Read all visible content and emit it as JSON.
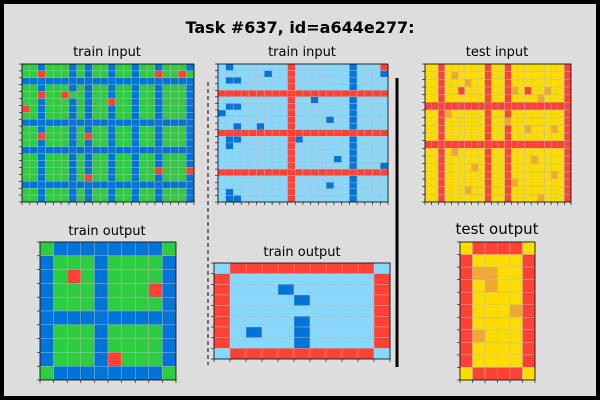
{
  "title": "Task #637, id=a644e277:",
  "palette": {
    "0": "#ffffff",
    "1": "#0074D9",
    "2": "#FF4136",
    "3": "#2ECC40",
    "4": "#FFDC00",
    "5": "#87D8FF",
    "black": "#000000",
    "background": "#dddddd"
  },
  "panels": [
    {
      "id": "train-input-1",
      "label": "train input",
      "grid": [
        "3313331313313313313331",
        "3323331313313313323323",
        "1111111111111111111111",
        "3313331313313313313331",
        "3323323313313313313331",
        "3313331313323313313331",
        "2313331313313313313331",
        "3313331313313313313331",
        "1111111111111111111111",
        "3313331313313313313331",
        "3323331323313313313331",
        "3313331313313313313331",
        "1111111111111111111111",
        "3313331313313313313331",
        "3313331313313313313331",
        "3313331313313313323332",
        "3313331323313313313331",
        "1111111111111111111111",
        "3313331313313313313331",
        "3313331313313313313331"
      ]
    },
    {
      "id": "train-output-1",
      "label": "train output",
      "grid": [
        "3111111113",
        "1333133331",
        "1323133331",
        "1333133321",
        "1333133331",
        "1111111111",
        "1333133331",
        "1333133331",
        "1333123331",
        "3111111113"
      ]
    },
    {
      "id": "train-input-2",
      "label": "train input",
      "grid": [
        "5155555552555555515552",
        "5555551552555555515551",
        "5115555552555555515555",
        "5555555552555555515555",
        "2222222222222222222222",
        "5555555552551555515555",
        "5115555552555555515555",
        "1555555552555555515555",
        "5555555552555515515555",
        "5515515552555555515555",
        "2222222222222222222222",
        "5115555552155555515555",
        "5155555552555555515555",
        "5555555552555555515555",
        "5555555552555551515555",
        "5555555552555555515551",
        "2222222222222222222222",
        "5555555552555555515555",
        "5555555552555515515555",
        "5155555552555555515555",
        "5115555552555555515555"
      ]
    },
    {
      "id": "train-output-2",
      "label": "train output",
      "grid": [
        "52222222225",
        "25555555552",
        "25551555552",
        "25555155552",
        "25555555552",
        "25555155552",
        "25155155552",
        "25555155552",
        "52222222225"
      ]
    },
    {
      "id": "test-input",
      "label": "test input",
      "grid": [
        "4424444442442444444442",
        "4424444442442444444442",
        "4424444442442444444442",
        "4424424442442442444442",
        "4424444442442444444442",
        "2222222222222222222222",
        "4424444442442444444442",
        "4424444442442444444442",
        "4424444442442444444442",
        "4424444442442444444442",
        "2222222222222222222222",
        "4424444442442444444442",
        "4424444442442444444442",
        "4424444442442444444442",
        "4424444442442444444442",
        "4424444442442444444442",
        "4424444442442444444442",
        "4424444442442444444442"
      ]
    },
    {
      "id": "test-output",
      "label": "test output",
      "grid": [
        "422224",
        "244442",
        "244442",
        "244442",
        "244442",
        "244442",
        "244442",
        "244442",
        "244442",
        "244442",
        "422224"
      ]
    }
  ],
  "highlights": {
    "test-input": [
      [
        1,
        4,
        "#f0a830"
      ],
      [
        2,
        6,
        "#f0a830"
      ],
      [
        3,
        13,
        "#f0a830"
      ],
      [
        4,
        17,
        "#f0a830"
      ],
      [
        6,
        3,
        "#f0a830"
      ],
      [
        7,
        12,
        "#f0a830"
      ],
      [
        8,
        19,
        "#f0a830"
      ],
      [
        11,
        4,
        "#f0a830"
      ],
      [
        12,
        16,
        "#f0a830"
      ],
      [
        13,
        7,
        "#f0a830"
      ],
      [
        14,
        19,
        "#f0a830"
      ],
      [
        15,
        13,
        "#f0a830"
      ],
      [
        16,
        6,
        "#f0a830"
      ],
      [
        17,
        17,
        "#f0a830"
      ],
      [
        3,
        18,
        "#f0a830"
      ],
      [
        8,
        15,
        "#f0a830"
      ]
    ],
    "test-output": [
      [
        2,
        1,
        "#f0a830"
      ],
      [
        2,
        2,
        "#f0a830"
      ],
      [
        3,
        2,
        "#f0a830"
      ],
      [
        5,
        4,
        "#f0a830"
      ],
      [
        7,
        1,
        "#f0a830"
      ]
    ]
  }
}
